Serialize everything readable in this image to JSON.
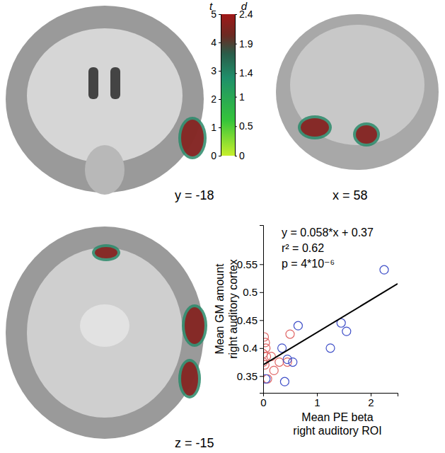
{
  "chart_data": [
    {
      "type": "scatter",
      "xlabel": [
        "Mean PE beta",
        "right auditory ROI"
      ],
      "ylabel": [
        "Mean GM amount",
        "right auditory cortex"
      ],
      "annotations": [
        "y = 0.058*x + 0.37",
        "r² = 0.62",
        "p = 4*10⁻⁶"
      ],
      "xlim": [
        0,
        2.5
      ],
      "xticks": [
        0,
        1,
        2
      ],
      "ylim": [
        0.32,
        0.62
      ],
      "yticks": [
        0.35,
        0.4,
        0.45,
        0.5,
        0.55
      ],
      "fit": {
        "slope": 0.058,
        "intercept": 0.37,
        "color": "#000000"
      },
      "series": [
        {
          "color": "#e06666",
          "marker": "circle-open",
          "x": [
            0.02,
            0.04,
            0.05,
            0.0,
            0.06,
            0.0,
            0.03,
            0.2,
            0.15,
            0.3,
            0.45,
            0.5,
            0.08
          ],
          "values": [
            0.42,
            0.41,
            0.4,
            0.39,
            0.385,
            0.375,
            0.37,
            0.36,
            0.385,
            0.375,
            0.375,
            0.425,
            0.345
          ]
        },
        {
          "color": "#3f4fc8",
          "marker": "circle-open",
          "x": [
            2.25,
            1.45,
            1.55,
            1.25,
            0.65,
            0.55,
            0.35,
            0.45,
            0.4,
            0.05
          ],
          "values": [
            0.54,
            0.445,
            0.43,
            0.4,
            0.44,
            0.375,
            0.4,
            0.38,
            0.34,
            0.345
          ]
        }
      ]
    },
    {
      "type": "colorbar",
      "t_label": "t",
      "tlim": [
        0,
        5
      ],
      "tticks": [
        0,
        1,
        2,
        3,
        4,
        5
      ],
      "d_label": "d",
      "dlim": [
        0,
        2.4
      ],
      "dticks": [
        0,
        0.5,
        1,
        1.4,
        1.9,
        2.4
      ]
    }
  ],
  "brain_slices": [
    {
      "label": "y = -18"
    },
    {
      "label": "x = 58"
    },
    {
      "label": "z = -15"
    }
  ]
}
